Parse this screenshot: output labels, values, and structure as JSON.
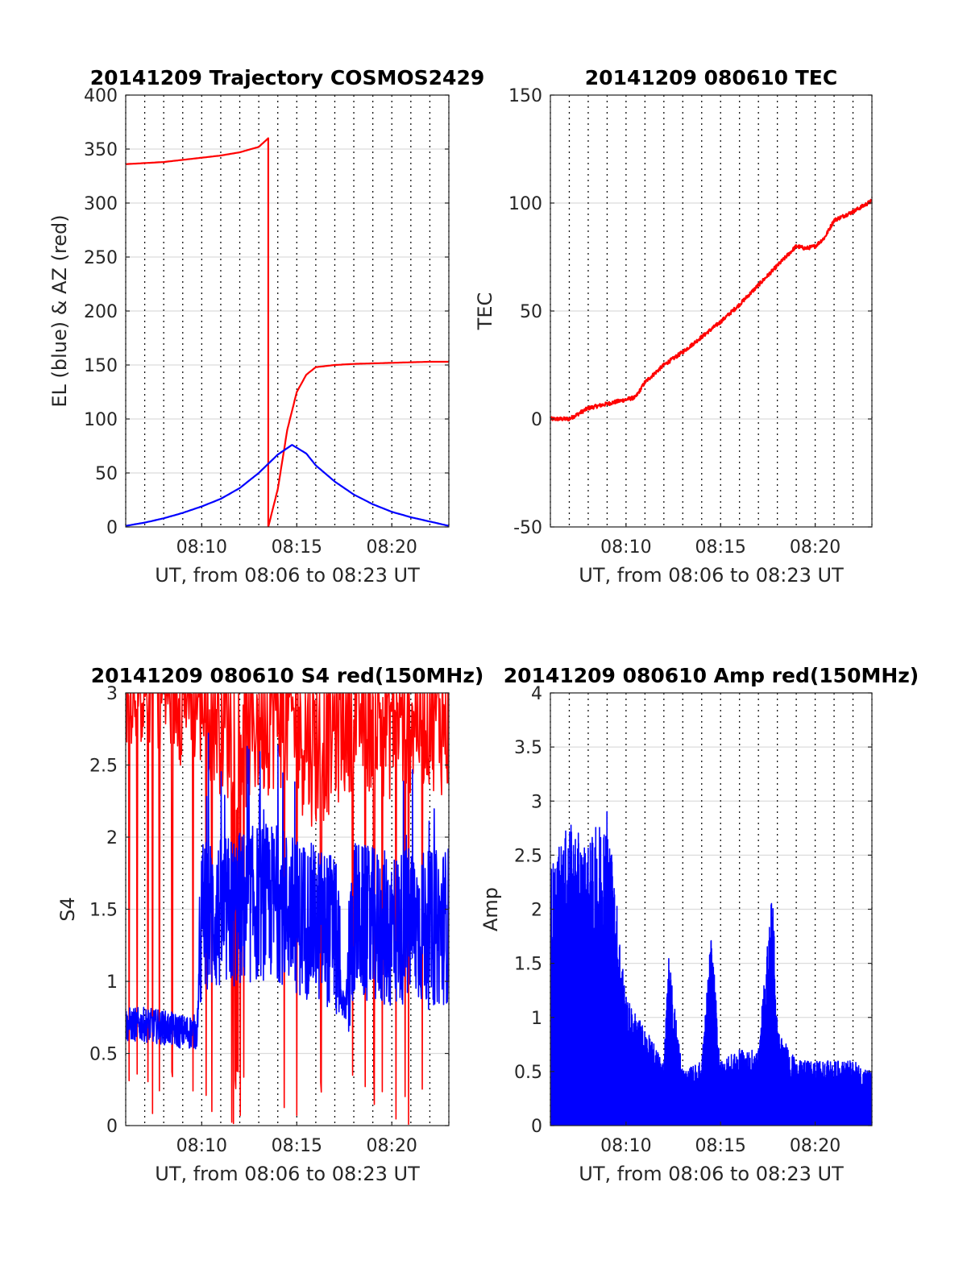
{
  "colors": {
    "red": "#ff0000",
    "blue": "#0000ff",
    "axis": "#262626",
    "grid": "#dcdcdc"
  },
  "chart_data": [
    {
      "type": "line",
      "title": "20141209 Trajectory COSMOS2429",
      "xlabel": "UT, from 08:06 to 08:23 UT",
      "ylabel": "EL (blue) & AZ (red)",
      "x_unit": "minutes",
      "xlim": [
        "08:06",
        "08:23"
      ],
      "ylim": [
        0,
        400
      ],
      "xticks": [
        "08:10",
        "08:15",
        "08:20"
      ],
      "yticks": [
        "0",
        "50",
        "100",
        "150",
        "200",
        "250",
        "300",
        "350",
        "400"
      ],
      "grid": true,
      "series": [
        {
          "color": "#ff0000",
          "x": [
            "08:06",
            "08:07",
            "08:08",
            "08:09",
            "08:10",
            "08:11",
            "08:12",
            "08:13",
            "08:13:30",
            "08:13:30",
            "08:14",
            "08:14:30",
            "08:15",
            "08:15:30",
            "08:16",
            "08:17",
            "08:18",
            "08:19",
            "08:20",
            "08:21",
            "08:22",
            "08:23"
          ],
          "y": [
            336,
            337,
            338,
            340,
            342,
            344,
            347,
            352,
            360,
            0,
            35,
            90,
            125,
            141,
            148,
            150,
            151,
            151.5,
            152,
            152.5,
            153,
            153
          ]
        },
        {
          "color": "#0000ff",
          "x": [
            "08:06",
            "08:07",
            "08:08",
            "08:09",
            "08:10",
            "08:11",
            "08:12",
            "08:13",
            "08:14",
            "08:14:45",
            "08:15:30",
            "08:16",
            "08:17",
            "08:18",
            "08:19",
            "08:20",
            "08:21",
            "08:22",
            "08:23"
          ],
          "y": [
            1,
            4,
            8,
            13,
            19,
            26,
            36,
            50,
            67,
            76,
            68,
            57,
            42,
            30,
            21,
            14,
            9,
            5,
            1
          ]
        }
      ]
    },
    {
      "type": "line",
      "title": "20141209 080610 TEC",
      "xlabel": "UT, from 08:06 to 08:23 UT",
      "ylabel": "TEC",
      "xlim": [
        "08:06",
        "08:23"
      ],
      "ylim": [
        -50,
        150
      ],
      "xticks": [
        "08:10",
        "08:15",
        "08:20"
      ],
      "yticks": [
        "-50",
        "0",
        "50",
        "100",
        "150"
      ],
      "grid": true,
      "series": [
        {
          "color": "#ff0000",
          "x": [
            "08:06",
            "08:07",
            "08:08",
            "08:09",
            "08:10",
            "08:10:30",
            "08:11",
            "08:12",
            "08:13",
            "08:14",
            "08:15",
            "08:16",
            "08:17",
            "08:18",
            "08:19",
            "08:19:30",
            "08:20",
            "08:20:30",
            "08:21",
            "08:22",
            "08:23"
          ],
          "y": [
            0,
            0,
            5,
            7,
            9,
            10,
            17,
            25,
            31,
            38,
            45,
            53,
            62,
            71,
            80,
            79,
            80,
            84,
            92,
            96,
            101
          ]
        }
      ]
    },
    {
      "type": "line",
      "title": "20141209 080610 S4 red(150MHz)",
      "xlabel": "UT, from 08:06 to 08:23 UT",
      "ylabel": "S4",
      "xlim": [
        "08:06",
        "08:23"
      ],
      "ylim": [
        0,
        3
      ],
      "xticks": [
        "08:10",
        "08:15",
        "08:20"
      ],
      "yticks": [
        "0",
        "0.5",
        "1",
        "1.5",
        "2",
        "2.5",
        "3"
      ],
      "grid": true,
      "series": [
        {
          "color": "#ff0000",
          "x": [
            "08:06",
            "08:08",
            "08:10",
            "08:12",
            "08:14",
            "08:16",
            "08:18",
            "08:20",
            "08:22",
            "08:23"
          ],
          "y": [
            3,
            2.9,
            2.8,
            2.5,
            2.7,
            2.4,
            2.7,
            2.6,
            2.7,
            2.6
          ]
        },
        {
          "color": "#0000ff",
          "x": [
            "08:06",
            "08:07",
            "08:08",
            "08:09",
            "08:09:45",
            "08:10",
            "08:11",
            "08:12",
            "08:13",
            "08:14",
            "08:15",
            "08:16",
            "08:17",
            "08:17:30",
            "08:18",
            "08:18:30",
            "08:19",
            "08:20",
            "08:21",
            "08:22",
            "08:23"
          ],
          "y": [
            0.7,
            0.7,
            0.68,
            0.65,
            0.65,
            1.45,
            1.45,
            1.5,
            1.55,
            1.55,
            1.45,
            1.4,
            1.35,
            0.75,
            1.45,
            1.4,
            1.38,
            1.35,
            1.4,
            1.35,
            1.4
          ]
        }
      ]
    },
    {
      "type": "line",
      "title": "20141209 080610 Amp red(150MHz)",
      "xlabel": "UT, from 08:06 to 08:23 UT",
      "ylabel": "Amp",
      "xlim": [
        "08:06",
        "08:23"
      ],
      "ylim": [
        0,
        4
      ],
      "xticks": [
        "08:10",
        "08:15",
        "08:20"
      ],
      "yticks": [
        "0",
        "0.5",
        "1",
        "1.5",
        "2",
        "2.5",
        "3",
        "3.5",
        "4"
      ],
      "grid": true,
      "series": [
        {
          "color": "#0000ff",
          "x": [
            "08:06",
            "08:07",
            "08:08",
            "08:09",
            "08:10",
            "08:11",
            "08:12",
            "08:12:15",
            "08:13",
            "08:14",
            "08:14:30",
            "08:15",
            "08:16",
            "08:17",
            "08:17:45",
            "08:18",
            "08:19",
            "08:20",
            "08:21",
            "08:22",
            "08:23"
          ],
          "y": [
            2.4,
            2.8,
            2.6,
            3.0,
            1.2,
            0.9,
            0.6,
            1.6,
            0.5,
            0.6,
            1.8,
            0.6,
            0.7,
            0.7,
            2.3,
            0.9,
            0.6,
            0.6,
            0.6,
            0.6,
            0.5
          ]
        }
      ]
    }
  ]
}
